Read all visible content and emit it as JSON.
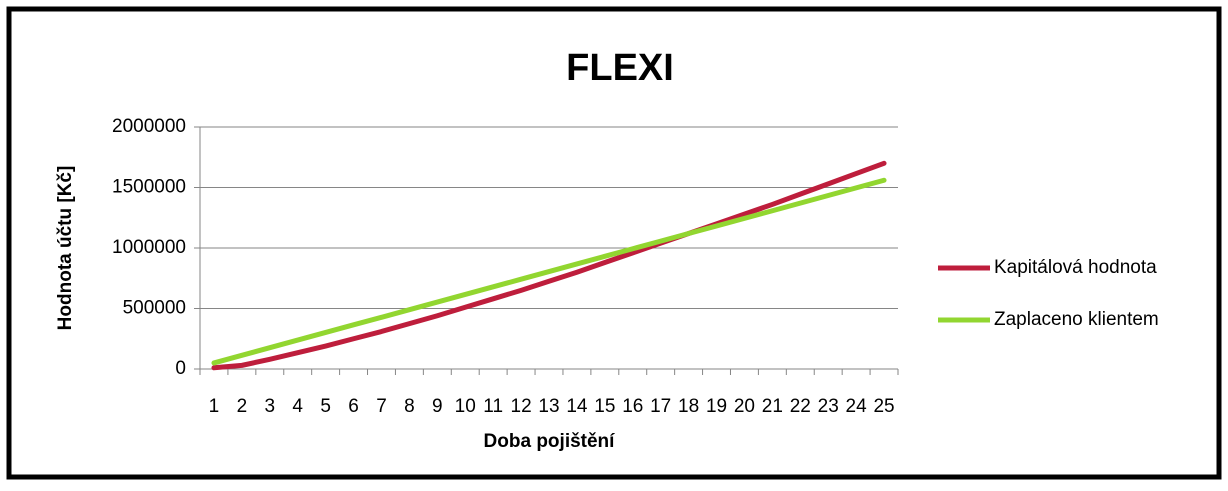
{
  "chart_data": {
    "type": "line",
    "title": "FLEXI",
    "x_label": "Doba pojištění",
    "y_label": "Hodnota účtu [Kč]",
    "categories": [
      "1",
      "2",
      "3",
      "4",
      "5",
      "6",
      "7",
      "8",
      "9",
      "10",
      "11",
      "12",
      "13",
      "14",
      "15",
      "16",
      "17",
      "18",
      "19",
      "20",
      "21",
      "22",
      "23",
      "24",
      "25"
    ],
    "series": [
      {
        "name": "Kapitálová hodnota",
        "color": "#be1e3c",
        "values": [
          10000,
          30000,
          80000,
          135000,
          190000,
          250000,
          310000,
          375000,
          440000,
          510000,
          580000,
          650000,
          725000,
          800000,
          880000,
          960000,
          1040000,
          1120000,
          1200000,
          1280000,
          1360000,
          1445000,
          1530000,
          1615000,
          1700000
        ]
      },
      {
        "name": "Zaplaceno klientem",
        "color": "#92d630",
        "values": [
          50000,
          113000,
          176000,
          239000,
          302000,
          365000,
          427000,
          490000,
          553000,
          616000,
          679000,
          742000,
          805000,
          868000,
          931000,
          994000,
          1057000,
          1120000,
          1182000,
          1245000,
          1308000,
          1371000,
          1434000,
          1497000,
          1560000
        ]
      }
    ],
    "ylim": [
      0,
      2000000
    ],
    "yticks": [
      0,
      500000,
      1000000,
      1500000,
      2000000
    ],
    "grid": true,
    "legend": "right"
  }
}
